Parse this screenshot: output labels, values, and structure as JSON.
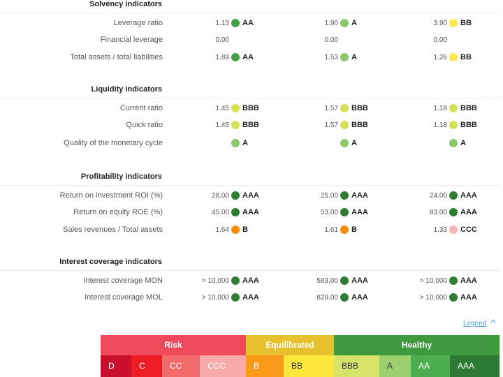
{
  "colors": {
    "AAA": "#2e7d32",
    "AA": "#43a047",
    "A": "#8bc96b",
    "BBB": "#d4e157",
    "BB": "#fde74c",
    "B": "#fb8c00",
    "CCC": "#f8b4b4"
  },
  "sections": [
    {
      "title": "Solvency indicators",
      "rows": [
        {
          "label": "Leverage ratio",
          "cols": [
            {
              "value": "1.13",
              "rating": "AA"
            },
            {
              "value": "1.90",
              "rating": "A"
            },
            {
              "value": "3.90",
              "rating": "BB"
            }
          ]
        },
        {
          "label": "Financial leverage",
          "cols": [
            {
              "value": "0.00",
              "rating": ""
            },
            {
              "value": "0.00",
              "rating": ""
            },
            {
              "value": "0.00",
              "rating": ""
            }
          ]
        },
        {
          "label": "Total assets / total liabilities",
          "cols": [
            {
              "value": "1.89",
              "rating": "AA"
            },
            {
              "value": "1.53",
              "rating": "A"
            },
            {
              "value": "1.26",
              "rating": "BB"
            }
          ]
        }
      ]
    },
    {
      "title": "Liquidity indicators",
      "rows": [
        {
          "label": "Current ratio",
          "cols": [
            {
              "value": "1.45",
              "rating": "BBB"
            },
            {
              "value": "1.57",
              "rating": "BBB"
            },
            {
              "value": "1.18",
              "rating": "BBB"
            }
          ]
        },
        {
          "label": "Quick ratio",
          "cols": [
            {
              "value": "1.45",
              "rating": "BBB"
            },
            {
              "value": "1.57",
              "rating": "BBB"
            },
            {
              "value": "1.18",
              "rating": "BBB"
            }
          ]
        },
        {
          "label": "Quality of the monetary cycle",
          "cols": [
            {
              "value": "",
              "rating": "A"
            },
            {
              "value": "",
              "rating": "A"
            },
            {
              "value": "",
              "rating": "A"
            }
          ]
        }
      ]
    },
    {
      "title": "Profitability indicators",
      "rows": [
        {
          "label": "Return on investment ROI (%)",
          "cols": [
            {
              "value": "28.00",
              "rating": "AAA"
            },
            {
              "value": "25.00",
              "rating": "AAA"
            },
            {
              "value": "24.00",
              "rating": "AAA"
            }
          ]
        },
        {
          "label": "Return on equity ROE (%)",
          "cols": [
            {
              "value": "45.00",
              "rating": "AAA"
            },
            {
              "value": "53.00",
              "rating": "AAA"
            },
            {
              "value": "83.00",
              "rating": "AAA"
            }
          ]
        },
        {
          "label": "Sales revenues / Total assets",
          "cols": [
            {
              "value": "1.64",
              "rating": "B"
            },
            {
              "value": "1.61",
              "rating": "B"
            },
            {
              "value": "1.33",
              "rating": "CCC"
            }
          ]
        }
      ]
    },
    {
      "title": "Interest coverage indicators",
      "rows": [
        {
          "label": "Interest coverage MON",
          "cols": [
            {
              "value": "> 10,000",
              "rating": "AAA"
            },
            {
              "value": "583.00",
              "rating": "AAA"
            },
            {
              "value": "> 10,000",
              "rating": "AAA"
            }
          ]
        },
        {
          "label": "Interest coverage MOL",
          "cols": [
            {
              "value": "> 10,000",
              "rating": "AAA"
            },
            {
              "value": "829.00",
              "rating": "AAA"
            },
            {
              "value": "> 10,000",
              "rating": "AAA"
            }
          ]
        }
      ]
    }
  ],
  "legend": {
    "toggle_label": "Legend",
    "toggle_icon": "chevron-up-icon",
    "groups": [
      {
        "label": "Risk",
        "color": "#ef4a5b"
      },
      {
        "label": "Equilibrated",
        "color": "#e8c12e"
      },
      {
        "label": "Healthy",
        "color": "#3f9a3f"
      }
    ],
    "classes": [
      {
        "label": "D",
        "color": "#c8102e",
        "text_color": "#ffffff"
      },
      {
        "label": "C",
        "color": "#ee1c25",
        "text_color": "#ffffff"
      },
      {
        "label": "CC",
        "color": "#f36b6b",
        "text_color": "#ffffff"
      },
      {
        "label": "CCC",
        "color": "#f8aaaa",
        "text_color": "#ffffff"
      },
      {
        "label": "B",
        "color": "#fb9a1a",
        "text_color": "#ffffff"
      },
      {
        "label": "BB",
        "color": "#fde73a",
        "text_color": "#333333"
      },
      {
        "label": "BBB",
        "color": "#d8e36a",
        "text_color": "#333333"
      },
      {
        "label": "A",
        "color": "#9ccf6d",
        "text_color": "#333333"
      },
      {
        "label": "AA",
        "color": "#4cae4f",
        "text_color": "#ffffff"
      },
      {
        "label": "AAA",
        "color": "#2d7a34",
        "text_color": "#ffffff"
      }
    ]
  }
}
